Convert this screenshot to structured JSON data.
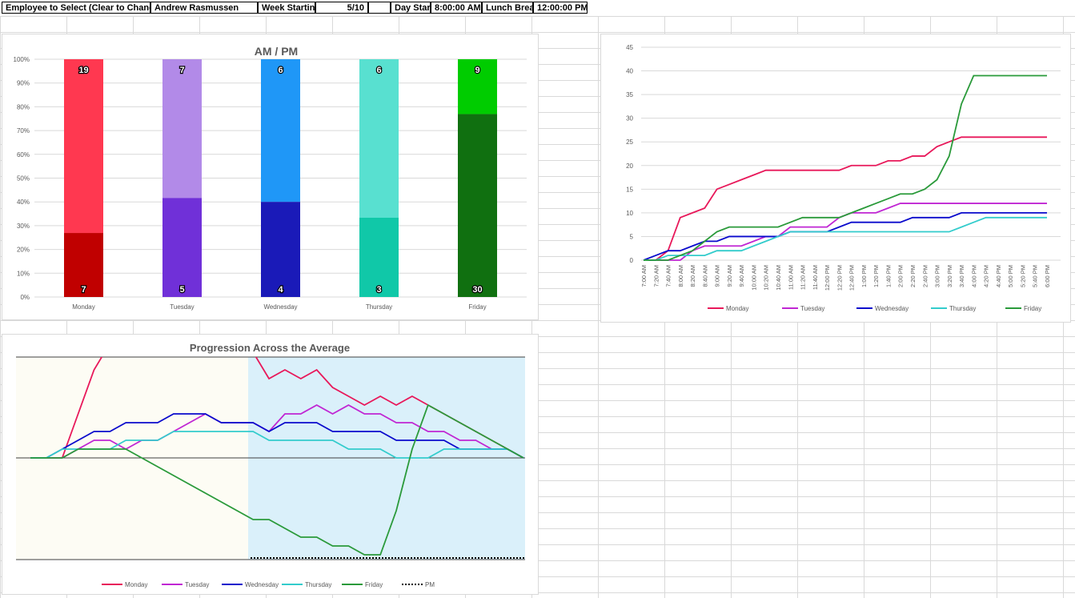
{
  "header": {
    "employee_label": "Employee to Select (Clear to Change)",
    "employee_value": "Andrew Rasmussen",
    "week_label": "Week Starting:",
    "week_value": "5/10",
    "day_start_label": "Day Start",
    "day_start_value": "8:00:00 AM",
    "lunch_label": "Lunch Break",
    "lunch_value": "12:00:00 PM"
  },
  "colors": {
    "monday": "#e8185a",
    "tuesday": "#c026d3",
    "wednesday": "#0a0acc",
    "thursday": "#33cccc",
    "friday": "#2a9a3a"
  },
  "chart_data": [
    {
      "type": "bar",
      "title": "AM / PM",
      "stacked": "100%",
      "categories": [
        "Monday",
        "Tuesday",
        "Wednesday",
        "Thursday",
        "Friday"
      ],
      "series": [
        {
          "values": [
            7,
            5,
            4,
            3,
            30
          ],
          "colors": [
            "#c00000",
            "#7030d8",
            "#1a1ab8",
            "#10c8a8",
            "#107010"
          ]
        },
        {
          "values": [
            19,
            7,
            6,
            6,
            9
          ],
          "colors": [
            "#ff3850",
            "#b28ae8",
            "#1f97f7",
            "#58e0d0",
            "#00cc00"
          ]
        }
      ],
      "ylim": [
        0,
        100
      ],
      "yticks": [
        "0%",
        "10%",
        "20%",
        "30%",
        "40%",
        "50%",
        "60%",
        "70%",
        "80%",
        "90%",
        "100%"
      ],
      "grid": true
    },
    {
      "type": "line",
      "x": [
        "7:00 AM",
        "7:20 AM",
        "7:40 AM",
        "8:00 AM",
        "8:20 AM",
        "8:40 AM",
        "9:00 AM",
        "9:20 AM",
        "9:40 AM",
        "10:00 AM",
        "10:20 AM",
        "10:40 AM",
        "11:00 AM",
        "11:20 AM",
        "11:40 AM",
        "12:00 PM",
        "12:20 PM",
        "12:40 PM",
        "1:00 PM",
        "1:20 PM",
        "1:40 PM",
        "2:00 PM",
        "2:20 PM",
        "2:40 PM",
        "3:00 PM",
        "3:20 PM",
        "3:40 PM",
        "4:00 PM",
        "4:20 PM",
        "4:40 PM",
        "5:00 PM",
        "5:20 PM",
        "5:40 PM",
        "6:00 PM"
      ],
      "ylim": [
        0,
        45
      ],
      "yticks": [
        0,
        5,
        10,
        15,
        20,
        25,
        30,
        35,
        40,
        45
      ],
      "legend_position": "bottom",
      "grid": true,
      "series": [
        {
          "name": "Monday",
          "color": "#e8185a",
          "values": [
            0,
            0,
            2,
            9,
            10,
            11,
            15,
            16,
            17,
            18,
            19,
            19,
            19,
            19,
            19,
            19,
            19,
            20,
            20,
            20,
            21,
            21,
            22,
            22,
            24,
            25,
            26,
            26,
            26,
            26,
            26,
            26,
            26,
            26
          ]
        },
        {
          "name": "Tuesday",
          "color": "#c026d3",
          "values": [
            0,
            0,
            0,
            0,
            2,
            3,
            3,
            3,
            3,
            4,
            5,
            5,
            7,
            7,
            7,
            7,
            9,
            10,
            10,
            10,
            11,
            12,
            12,
            12,
            12,
            12,
            12,
            12,
            12,
            12,
            12,
            12,
            12,
            12
          ]
        },
        {
          "name": "Wednesday",
          "color": "#0a0acc",
          "values": [
            0,
            1,
            2,
            2,
            3,
            4,
            4,
            5,
            5,
            5,
            5,
            5,
            6,
            6,
            6,
            6,
            7,
            8,
            8,
            8,
            8,
            8,
            9,
            9,
            9,
            9,
            10,
            10,
            10,
            10,
            10,
            10,
            10,
            10
          ]
        },
        {
          "name": "Thursday",
          "color": "#33cccc",
          "values": [
            0,
            0,
            1,
            1,
            1,
            1,
            2,
            2,
            2,
            3,
            4,
            5,
            6,
            6,
            6,
            6,
            6,
            6,
            6,
            6,
            6,
            6,
            6,
            6,
            6,
            6,
            7,
            8,
            9,
            9,
            9,
            9,
            9,
            9
          ]
        },
        {
          "name": "Friday",
          "color": "#2a9a3a",
          "values": [
            0,
            0,
            0,
            1,
            2,
            4,
            6,
            7,
            7,
            7,
            7,
            7,
            8,
            9,
            9,
            9,
            9,
            10,
            11,
            12,
            13,
            14,
            14,
            15,
            17,
            22,
            33,
            39,
            39,
            39,
            39,
            39,
            39,
            39
          ]
        }
      ]
    },
    {
      "type": "line",
      "title": "Progression Across the Average",
      "legend_position": "bottom",
      "series": [
        {
          "name": "Monday",
          "color": "#e8185a",
          "values": [
            0,
            0,
            0,
            5,
            10,
            13,
            12,
            15,
            20,
            22,
            22,
            21,
            18,
            15,
            12,
            9,
            10,
            9,
            10,
            8,
            7,
            6,
            7,
            6,
            7,
            6,
            5,
            4,
            3,
            2,
            1,
            0
          ]
        },
        {
          "name": "Tuesday",
          "color": "#c026d3",
          "values": [
            0,
            0,
            0,
            1,
            2,
            2,
            1,
            2,
            2,
            3,
            4,
            5,
            4,
            4,
            4,
            3,
            5,
            5,
            6,
            5,
            6,
            5,
            5,
            4,
            4,
            3,
            3,
            2,
            2,
            1,
            1,
            0
          ]
        },
        {
          "name": "Wednesday",
          "color": "#0a0acc",
          "values": [
            0,
            0,
            1,
            2,
            3,
            3,
            4,
            4,
            4,
            5,
            5,
            5,
            4,
            4,
            4,
            3,
            4,
            4,
            4,
            3,
            3,
            3,
            3,
            2,
            2,
            2,
            2,
            1,
            1,
            1,
            1,
            0
          ]
        },
        {
          "name": "Thursday",
          "color": "#33cccc",
          "values": [
            0,
            0,
            1,
            1,
            1,
            1,
            2,
            2,
            2,
            3,
            3,
            3,
            3,
            3,
            3,
            2,
            2,
            2,
            2,
            2,
            1,
            1,
            1,
            0,
            0,
            0,
            1,
            1,
            1,
            1,
            1,
            0
          ]
        },
        {
          "name": "Friday",
          "color": "#2a9a3a",
          "values": [
            0,
            0,
            0,
            1,
            1,
            1,
            1,
            0,
            -1,
            -2,
            -3,
            -4,
            -5,
            -6,
            -7,
            -7,
            -8,
            -9,
            -9,
            -10,
            -10,
            -11,
            -11,
            -6,
            1,
            6,
            5,
            4,
            3,
            2,
            1,
            0
          ]
        },
        {
          "name": "PM",
          "color": "#000000",
          "style": "dotted"
        }
      ]
    }
  ]
}
